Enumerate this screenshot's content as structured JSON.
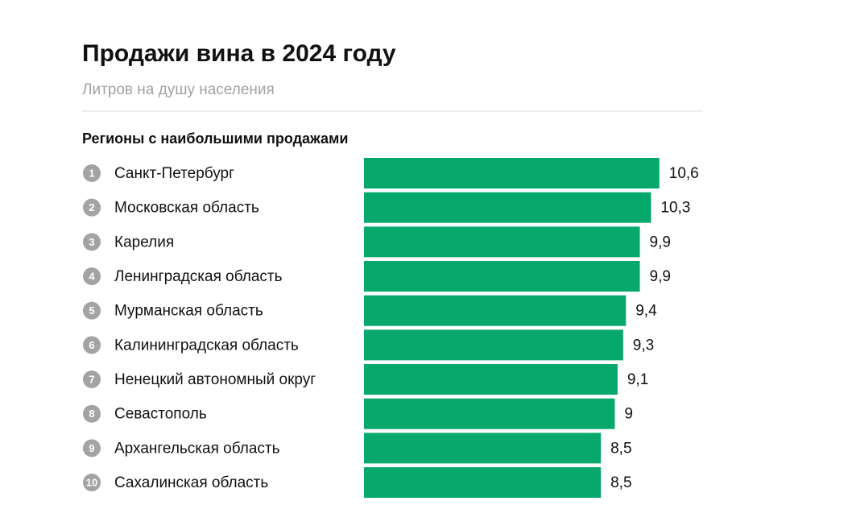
{
  "chart_data": {
    "type": "bar",
    "title": "Продажи вина в 2024 году",
    "subtitle": "Литров на душу населения",
    "section_title": "Регионы с наибольшими продажами",
    "ranks": [
      "1",
      "2",
      "3",
      "4",
      "5",
      "6",
      "7",
      "8",
      "9",
      "10"
    ],
    "categories": [
      "Санкт-Петербург",
      "Московская область",
      "Карелия",
      "Ленинградская область",
      "Мурманская область",
      "Калининградская область",
      "Ненецкий автономный округ",
      "Севастополь",
      "Архангельская область",
      "Сахалинская область"
    ],
    "values": [
      10.6,
      10.3,
      9.9,
      9.9,
      9.4,
      9.3,
      9.1,
      9,
      8.5,
      8.5
    ],
    "value_labels": [
      "10,6",
      "10,3",
      "9,9",
      "9,9",
      "9,4",
      "9,3",
      "9,1",
      "9",
      "8,5",
      "8,5"
    ],
    "color": "#06a86b"
  }
}
